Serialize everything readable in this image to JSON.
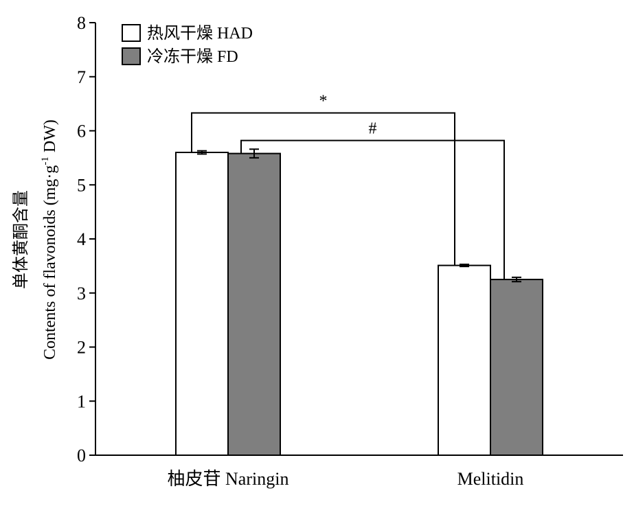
{
  "chart_data": {
    "type": "bar",
    "categories": [
      "柚皮苷 Naringin",
      "Melitidin"
    ],
    "series": [
      {
        "name": "热风干燥 HAD",
        "values": [
          5.6,
          3.51
        ],
        "errors": [
          0.03,
          0.02
        ],
        "color": "#ffffff"
      },
      {
        "name": "冷冻干燥 FD",
        "values": [
          5.58,
          3.25
        ],
        "errors": [
          0.08,
          0.04
        ],
        "color": "#7f7f7f"
      }
    ],
    "ylabel_line1": "单体黄酮含量",
    "ylabel_line2_main": "Contents of flavonoids (mg·g",
    "ylabel_line2_sup": "-1",
    "ylabel_line2_end": " DW)",
    "ylim": [
      0,
      8
    ],
    "yticks": [
      "0",
      "1",
      "2",
      "3",
      "4",
      "5",
      "6",
      "7",
      "8"
    ],
    "legend_position": "top-left",
    "grid": false,
    "annotations": [
      {
        "text": "*",
        "compares": "HAD: 柚皮苷 Naringin vs Melitidin",
        "bracket_level": 6.33
      },
      {
        "text": "#",
        "compares": "FD: 柚皮苷 Naringin vs Melitidin",
        "bracket_level": 5.82
      }
    ]
  }
}
